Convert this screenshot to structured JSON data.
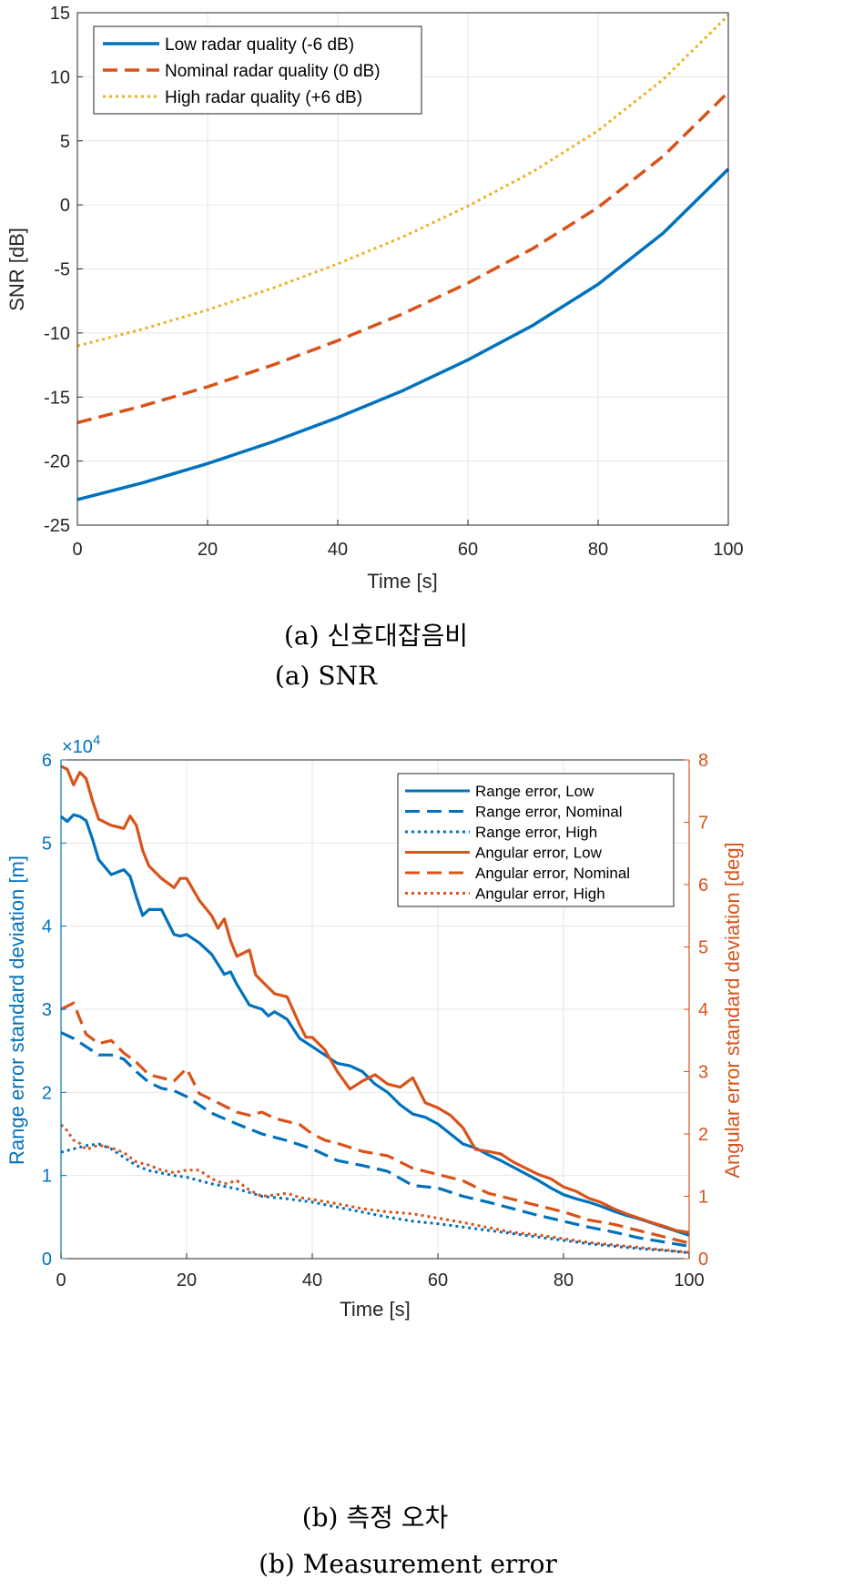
{
  "colors": {
    "blue": "#0072BD",
    "orange": "#D95319",
    "yellow": "#EDB120",
    "grid": "#e6e6e6",
    "axis": "#262626"
  },
  "captions": {
    "a_ko": "(a) 신호대잡음비",
    "a_en": "(a) SNR",
    "b_ko": "(b) 측정 오차",
    "b_en": "(b) Measurement error"
  },
  "chart_data": [
    {
      "type": "line",
      "xlabel": "Time [s]",
      "ylabel": "SNR [dB]",
      "xlim": [
        0,
        100
      ],
      "ylim": [
        -25,
        15
      ],
      "xticks": [
        0,
        20,
        40,
        60,
        80,
        100
      ],
      "yticks": [
        -25,
        -20,
        -15,
        -10,
        -5,
        0,
        5,
        10,
        15
      ],
      "grid": true,
      "legend": "top-left",
      "series": [
        {
          "name": "Low radar quality (-6 dB)",
          "style": "solid",
          "color": "#0072BD",
          "x": [
            0,
            10,
            20,
            30,
            40,
            50,
            60,
            70,
            80,
            90,
            100
          ],
          "values": [
            -23,
            -21.7,
            -20.2,
            -18.5,
            -16.6,
            -14.5,
            -12.1,
            -9.4,
            -6.2,
            -2.2,
            2.8
          ]
        },
        {
          "name": "Nominal radar quality (0 dB)",
          "style": "dashed",
          "color": "#D95319",
          "x": [
            0,
            10,
            20,
            30,
            40,
            50,
            60,
            70,
            80,
            90,
            100
          ],
          "values": [
            -17,
            -15.7,
            -14.2,
            -12.5,
            -10.6,
            -8.5,
            -6.1,
            -3.4,
            -0.2,
            3.8,
            8.8
          ]
        },
        {
          "name": "High radar quality (+6 dB)",
          "style": "dotted",
          "color": "#EDB120",
          "x": [
            0,
            10,
            20,
            30,
            40,
            50,
            60,
            70,
            80,
            90,
            100
          ],
          "values": [
            -11,
            -9.7,
            -8.2,
            -6.5,
            -4.6,
            -2.5,
            -0.1,
            2.6,
            5.8,
            9.8,
            14.8
          ]
        }
      ]
    },
    {
      "type": "line",
      "xlabel": "Time [s]",
      "ylabel_left": "Range error standard deviation [m]",
      "ylabel_right": "Angular error standard deviation [deg]",
      "left_exponent_base": "×10",
      "left_exponent_power": "4",
      "xlim": [
        0,
        100
      ],
      "ylim_left": [
        0,
        6
      ],
      "ylim_right": [
        0,
        8
      ],
      "xticks": [
        0,
        20,
        40,
        60,
        80,
        100
      ],
      "yticks_left": [
        0,
        1,
        2,
        3,
        4,
        5,
        6
      ],
      "yticks_right": [
        0,
        1,
        2,
        3,
        4,
        5,
        6,
        7,
        8
      ],
      "grid": true,
      "legend": "top-right",
      "series": [
        {
          "name": "Range error, Low",
          "axis": "left",
          "style": "solid",
          "color": "#0072BD",
          "x": [
            0,
            1,
            2,
            3,
            4,
            5,
            6,
            8,
            10,
            11,
            12,
            13,
            14,
            16,
            18,
            19,
            20,
            22,
            24,
            26,
            27,
            28,
            30,
            32,
            33,
            34,
            36,
            38,
            40,
            42,
            44,
            46,
            48,
            50,
            52,
            54,
            56,
            58,
            60,
            62,
            64,
            66,
            68,
            70,
            72,
            74,
            76,
            78,
            80,
            82,
            84,
            86,
            88,
            90,
            92,
            94,
            96,
            98,
            100
          ],
          "values": [
            5.32,
            5.26,
            5.34,
            5.32,
            5.27,
            5.05,
            4.8,
            4.62,
            4.68,
            4.6,
            4.35,
            4.13,
            4.2,
            4.2,
            3.9,
            3.88,
            3.9,
            3.8,
            3.66,
            3.42,
            3.45,
            3.3,
            3.05,
            3.0,
            2.92,
            2.97,
            2.88,
            2.65,
            2.55,
            2.45,
            2.35,
            2.32,
            2.25,
            2.1,
            2.0,
            1.85,
            1.74,
            1.7,
            1.62,
            1.5,
            1.38,
            1.33,
            1.25,
            1.18,
            1.1,
            1.02,
            0.94,
            0.85,
            0.77,
            0.72,
            0.68,
            0.63,
            0.57,
            0.52,
            0.48,
            0.43,
            0.38,
            0.33,
            0.28
          ]
        },
        {
          "name": "Range error, Nominal",
          "axis": "left",
          "style": "dashed",
          "color": "#0072BD",
          "x": [
            0,
            2,
            4,
            6,
            8,
            10,
            12,
            14,
            16,
            18,
            20,
            24,
            28,
            32,
            36,
            40,
            44,
            48,
            52,
            56,
            60,
            64,
            68,
            72,
            76,
            80,
            84,
            88,
            92,
            96,
            100
          ],
          "values": [
            2.72,
            2.65,
            2.55,
            2.45,
            2.45,
            2.4,
            2.25,
            2.12,
            2.05,
            2.02,
            1.95,
            1.75,
            1.62,
            1.5,
            1.42,
            1.32,
            1.18,
            1.12,
            1.05,
            0.88,
            0.85,
            0.75,
            0.68,
            0.6,
            0.52,
            0.45,
            0.38,
            0.32,
            0.25,
            0.2,
            0.15
          ]
        },
        {
          "name": "Range error, High",
          "axis": "left",
          "style": "dotted",
          "color": "#0072BD",
          "x": [
            0,
            2,
            4,
            6,
            8,
            10,
            12,
            14,
            16,
            18,
            20,
            24,
            28,
            32,
            36,
            40,
            44,
            48,
            52,
            56,
            60,
            64,
            68,
            72,
            76,
            80,
            84,
            88,
            92,
            96,
            100
          ],
          "values": [
            1.28,
            1.32,
            1.36,
            1.38,
            1.32,
            1.22,
            1.12,
            1.06,
            1.03,
            1.0,
            0.98,
            0.9,
            0.84,
            0.75,
            0.72,
            0.68,
            0.62,
            0.56,
            0.5,
            0.45,
            0.42,
            0.38,
            0.34,
            0.3,
            0.26,
            0.22,
            0.18,
            0.15,
            0.12,
            0.1,
            0.07
          ]
        },
        {
          "name": "Angular error, Low",
          "axis": "right",
          "style": "solid",
          "color": "#D95319",
          "x": [
            0,
            1,
            2,
            3,
            4,
            5,
            6,
            8,
            10,
            11,
            12,
            13,
            14,
            16,
            18,
            19,
            20,
            22,
            24,
            25,
            26,
            27,
            28,
            30,
            31,
            32,
            34,
            36,
            38,
            39,
            40,
            42,
            44,
            46,
            48,
            50,
            52,
            54,
            56,
            58,
            60,
            62,
            64,
            66,
            68,
            70,
            72,
            74,
            76,
            78,
            80,
            82,
            84,
            86,
            88,
            90,
            92,
            94,
            96,
            98,
            100
          ],
          "values": [
            7.9,
            7.85,
            7.6,
            7.8,
            7.7,
            7.35,
            7.05,
            6.95,
            6.9,
            7.1,
            6.95,
            6.55,
            6.3,
            6.1,
            5.95,
            6.1,
            6.1,
            5.75,
            5.5,
            5.3,
            5.45,
            5.1,
            4.85,
            4.95,
            4.55,
            4.45,
            4.25,
            4.2,
            3.75,
            3.55,
            3.55,
            3.35,
            3.0,
            2.72,
            2.85,
            2.95,
            2.8,
            2.75,
            2.9,
            2.5,
            2.42,
            2.3,
            2.1,
            1.75,
            1.72,
            1.68,
            1.55,
            1.45,
            1.35,
            1.28,
            1.15,
            1.08,
            0.97,
            0.9,
            0.8,
            0.72,
            0.65,
            0.58,
            0.52,
            0.45,
            0.42
          ]
        },
        {
          "name": "Angular error, Nominal",
          "axis": "right",
          "style": "dashed",
          "color": "#D95319",
          "x": [
            0,
            1,
            2,
            3,
            4,
            6,
            8,
            10,
            12,
            14,
            16,
            18,
            20,
            22,
            24,
            26,
            28,
            30,
            32,
            34,
            36,
            38,
            40,
            42,
            44,
            48,
            52,
            56,
            60,
            64,
            68,
            72,
            76,
            80,
            84,
            88,
            92,
            96,
            100
          ],
          "values": [
            4.0,
            4.05,
            4.1,
            3.85,
            3.6,
            3.45,
            3.5,
            3.3,
            3.15,
            2.95,
            2.9,
            2.85,
            3.05,
            2.65,
            2.55,
            2.45,
            2.35,
            2.3,
            2.35,
            2.25,
            2.2,
            2.15,
            2.0,
            1.9,
            1.85,
            1.72,
            1.65,
            1.45,
            1.35,
            1.25,
            1.05,
            0.95,
            0.85,
            0.75,
            0.62,
            0.55,
            0.45,
            0.35,
            0.25
          ]
        },
        {
          "name": "Angular error, High",
          "axis": "right",
          "style": "dotted",
          "color": "#D95319",
          "x": [
            0,
            1,
            2,
            3,
            4,
            6,
            8,
            10,
            12,
            14,
            16,
            18,
            20,
            22,
            24,
            26,
            28,
            30,
            32,
            34,
            36,
            38,
            40,
            44,
            48,
            52,
            56,
            60,
            64,
            68,
            72,
            76,
            80,
            84,
            88,
            92,
            96,
            100
          ],
          "values": [
            2.15,
            2.05,
            1.9,
            1.85,
            1.75,
            1.82,
            1.78,
            1.7,
            1.55,
            1.5,
            1.42,
            1.38,
            1.42,
            1.42,
            1.28,
            1.2,
            1.25,
            1.1,
            1.0,
            1.02,
            1.05,
            0.98,
            0.95,
            0.88,
            0.8,
            0.75,
            0.72,
            0.65,
            0.58,
            0.5,
            0.42,
            0.38,
            0.32,
            0.26,
            0.22,
            0.18,
            0.14,
            0.1
          ]
        }
      ]
    }
  ]
}
